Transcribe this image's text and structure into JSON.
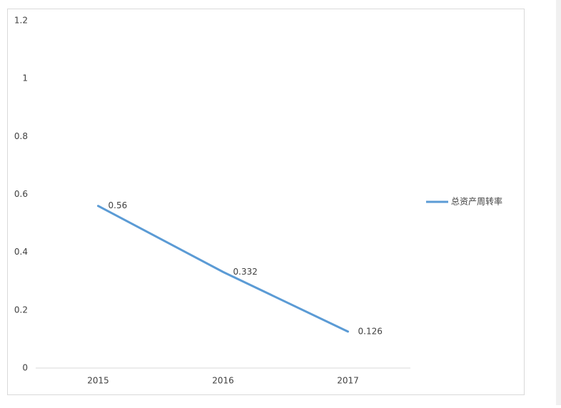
{
  "chart_data": {
    "type": "line",
    "categories": [
      "2015",
      "2016",
      "2017"
    ],
    "series": [
      {
        "name": "总资产周转率",
        "color": "#5b9bd5",
        "values": [
          0.56,
          0.332,
          0.126
        ]
      }
    ],
    "ylim": [
      0,
      1.2
    ],
    "yticks": [
      0,
      0.2,
      0.4,
      0.6,
      0.8,
      1,
      1.2
    ],
    "grid": false,
    "legend": "right",
    "data_labels": true
  }
}
